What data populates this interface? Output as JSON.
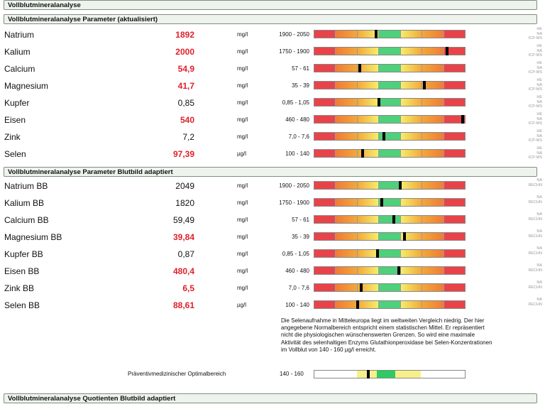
{
  "sections": [
    {
      "title": "Vollblutmineralanalyse",
      "top": 0
    },
    {
      "title": "Vollblutmineralanalyse Parameter (aktualisiert)",
      "top": 20
    },
    {
      "title": "Vollblutmineralanalyse Parameter Blutbild adaptiert",
      "top": 235
    },
    {
      "title": "Vollblutmineralanalyse Quotienten Blutbild adaptiert",
      "top": 554
    }
  ],
  "rows_updated": [
    {
      "name": "Natrium",
      "value": "1892",
      "high": true,
      "unit": "mg/l",
      "range": "1900 - 2050",
      "marker": 0.41,
      "method": "HE\nNA\nICP-MS"
    },
    {
      "name": "Kalium",
      "value": "2000",
      "high": true,
      "unit": "mg/l",
      "range": "1750 - 1900",
      "marker": 0.88,
      "method": "HE\nNA\nICP-MS"
    },
    {
      "name": "Calcium",
      "value": "54,9",
      "high": true,
      "unit": "mg/l",
      "range": "57 - 61",
      "marker": 0.3,
      "method": "HE\nNA\nICP-MS"
    },
    {
      "name": "Magnesium",
      "value": "41,7",
      "high": true,
      "unit": "mg/l",
      "range": "35 - 39",
      "marker": 0.73,
      "method": "HE\nNA\nICP-MS"
    },
    {
      "name": "Kupfer",
      "value": "0,85",
      "high": false,
      "unit": "mg/l",
      "range": "0,85 - 1,05",
      "marker": 0.43,
      "method": "HE\nNA\nICP-MS"
    },
    {
      "name": "Eisen",
      "value": "540",
      "high": true,
      "unit": "mg/l",
      "range": "460 - 480",
      "marker": 0.985,
      "method": "HE\nNA\nICP-MS"
    },
    {
      "name": "Zink",
      "value": "7,2",
      "high": false,
      "unit": "mg/l",
      "range": "7,0 - 7,6",
      "marker": 0.46,
      "method": "HE\nNA\nICP-MS"
    },
    {
      "name": "Selen",
      "value": "97,39",
      "high": true,
      "unit": "µg/l",
      "range": "100 - 140",
      "marker": 0.32,
      "method": "HE\nNA\nICP-MS"
    }
  ],
  "rows_bb": [
    {
      "name": "Natrium BB",
      "value": "2049",
      "high": false,
      "unit": "mg/l",
      "range": "1900 - 2050",
      "marker": 0.57,
      "method": "NA\nRECHN"
    },
    {
      "name": "Kalium BB",
      "value": "1820",
      "high": false,
      "unit": "mg/l",
      "range": "1750 - 1900",
      "marker": 0.45,
      "method": "NA\nRECHN"
    },
    {
      "name": "Calcium BB",
      "value": "59,49",
      "high": false,
      "unit": "mg/l",
      "range": "57 - 61",
      "marker": 0.53,
      "method": "NA\nRECHN"
    },
    {
      "name": "Magnesium BB",
      "value": "39,84",
      "high": true,
      "unit": "mg/l",
      "range": "35 - 39",
      "marker": 0.6,
      "method": "NA\nRECHN"
    },
    {
      "name": "Kupfer BB",
      "value": "0,87",
      "high": false,
      "unit": "mg/l",
      "range": "0,85 - 1,05",
      "marker": 0.42,
      "method": "NA\nRECHN"
    },
    {
      "name": "Eisen BB",
      "value": "480,4",
      "high": true,
      "unit": "mg/l",
      "range": "460 - 480",
      "marker": 0.56,
      "method": "NA\nRECHN"
    },
    {
      "name": "Zink BB",
      "value": "6,5",
      "high": true,
      "unit": "mg/l",
      "range": "7,0 - 7,6",
      "marker": 0.31,
      "method": "NA\nRECHN"
    },
    {
      "name": "Selen BB",
      "value": "88,61",
      "high": true,
      "unit": "µg/l",
      "range": "100 - 140",
      "marker": 0.29,
      "method": "NA\nRECHN"
    }
  ],
  "note": "Die Selenaufnahme in Mitteleuropa liegt im weltweiten Vergleich niedrig. Der hier angegebene Normalbereich entspricht einem statistischen Mittel. Er repräsentiert nicht die physiologischen wünschenswerten Grenzen. So wird eine maximale Aktivität des selenhaltigen Enzyms Glutathionperoxidase bei Selen-Konzentrationen im Vollblut von 140 - 160 µg/l erreicht.",
  "optimal": {
    "label": "Präventivmedizinischer Optimalbereich",
    "range": "140 - 160",
    "marker": 0.36
  },
  "colors": {
    "red": "#e9434a",
    "orange": "#f3a83a",
    "yellow": "#f5ee6b",
    "green": "#4fd07a",
    "high_value": "#e0202a"
  }
}
